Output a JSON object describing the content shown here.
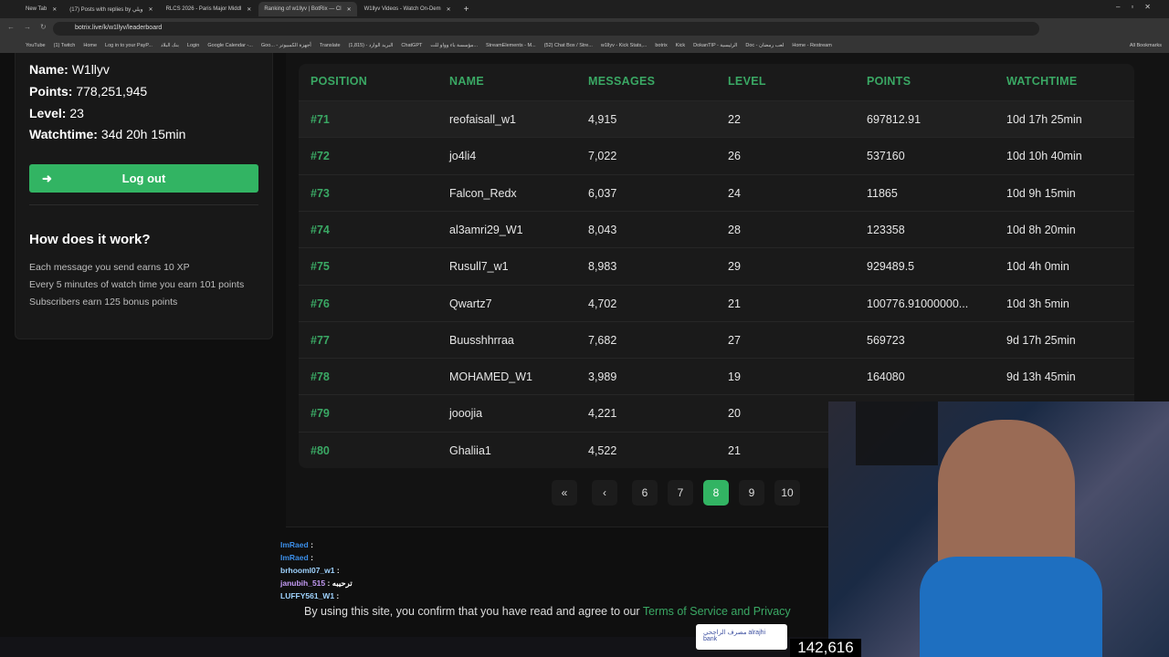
{
  "browser": {
    "tabs": [
      {
        "title": "New Tab",
        "active": false
      },
      {
        "title": "(17) Posts with replies by ويلي",
        "active": false
      },
      {
        "title": "RLCS 2026 - Paris Major Middl",
        "active": false
      },
      {
        "title": "Ranking of w1llyv | BotRix — Cl",
        "active": true
      },
      {
        "title": "W1llyv Videos - Watch On-Dem",
        "active": false
      }
    ],
    "url": "botrix.live/k/w1llyv/leaderboard",
    "bookmarks": [
      "YouTube",
      "(1) Twitch",
      "Home",
      "Log in to your PayP...",
      "بنك البلاد",
      "Login",
      "Google Calendar -...",
      "Goo... - أجهزة الكمبيوتر",
      "Translate",
      "(1,815) - البريد الوارد",
      "ChatGPT",
      "مؤسسة باء وواو للت...",
      "StreamElements - M...",
      "(52) Chat Box / Stre...",
      "w1llyv - Kick Stats,...",
      "botrix",
      "Kick",
      "DokanTIP - الرئيسية",
      "Doc - لعب رمضان",
      "Home - Restream",
      "All Bookmarks"
    ]
  },
  "profile": {
    "name_label": "Name:",
    "name": "W1llyv",
    "points_label": "Points:",
    "points": "778,251,945",
    "level_label": "Level:",
    "level": "23",
    "watchtime_label": "Watchtime:",
    "watchtime": "34d 20h 15min",
    "logout": "Log out"
  },
  "how": {
    "title": "How does it work?",
    "lines": [
      "Each message you send earns 10 XP",
      "Every 5 minutes of watch time you earn 101 points",
      "Subscribers earn 125 bonus points"
    ]
  },
  "leaderboard": {
    "headers": [
      "POSITION",
      "NAME",
      "MESSAGES",
      "LEVEL",
      "POINTS",
      "WATCHTIME"
    ],
    "rows": [
      [
        "#71",
        "reofaisall_w1",
        "4,915",
        "22",
        "697812.91",
        "10d 17h 25min"
      ],
      [
        "#72",
        "jo4li4",
        "7,022",
        "26",
        "537160",
        "10d 10h 40min"
      ],
      [
        "#73",
        "Falcon_Redx",
        "6,037",
        "24",
        "11865",
        "10d 9h 15min"
      ],
      [
        "#74",
        "al3amri29_W1",
        "8,043",
        "28",
        "123358",
        "10d 8h 20min"
      ],
      [
        "#75",
        "Rusull7_w1",
        "8,983",
        "29",
        "929489.5",
        "10d 4h 0min"
      ],
      [
        "#76",
        "Qwartz7",
        "4,702",
        "21",
        "100776.91000000...",
        "10d 3h 5min"
      ],
      [
        "#77",
        "Buusshhrraa",
        "7,682",
        "27",
        "569723",
        "9d 17h 25min"
      ],
      [
        "#78",
        "MOHAMED_W1",
        "3,989",
        "19",
        "164080",
        "9d 13h 45min"
      ],
      [
        "#79",
        "jooojia",
        "4,221",
        "20",
        "",
        ""
      ],
      [
        "#80",
        "Ghaliia1",
        "4,522",
        "21",
        "",
        ""
      ]
    ],
    "accent": "#32b463"
  },
  "pagination": {
    "first": "«",
    "prev": "‹",
    "pages": [
      "6",
      "7",
      "8",
      "9",
      "10"
    ],
    "current": "8"
  },
  "overlay": {
    "chat": [
      {
        "user": "ImRaed",
        "text": ":"
      },
      {
        "user": "ImRaed",
        "text": ":"
      },
      {
        "user": "brhooml07_w1",
        "text": ":"
      },
      {
        "user": "janubih_515",
        "text": ": ترحيبه"
      },
      {
        "user": "LUFFY561_W1",
        "text": ":"
      }
    ],
    "consent_text": "By using this site, you confirm that you have read and agree to our ",
    "consent_link": "Terms of Service and Privacy",
    "bank": "مصرف الراجحي alrajhi bank",
    "viewer_count": "142,616"
  }
}
